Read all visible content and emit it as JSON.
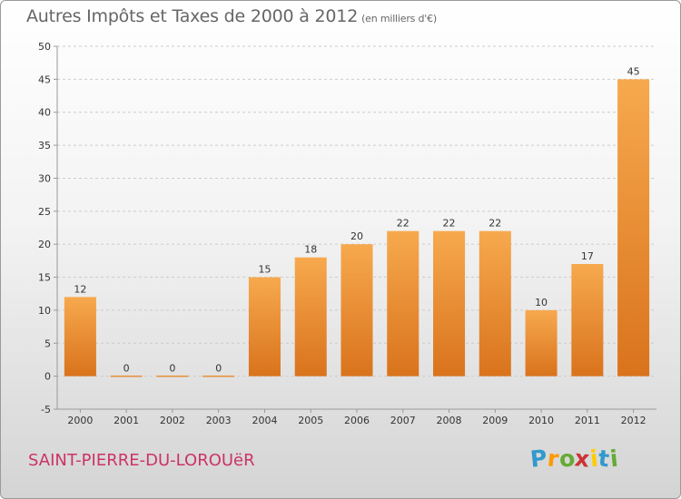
{
  "header": {
    "title": "Autres Impôts et Taxes de 2000 à 2012",
    "subtitle": "(en milliers d'€)"
  },
  "footer": {
    "commune": "SAINT-PIERRE-DU-LOROUëR",
    "logo_letters": [
      "P",
      "r",
      "o",
      "x",
      "i",
      "t",
      "i"
    ],
    "logo_colors": [
      "#3399cc",
      "#ff9900",
      "#66aa33",
      "#cc3333",
      "#ffcc00",
      "#3399cc",
      "#66aa33"
    ]
  },
  "chart_data": {
    "type": "bar",
    "title": "Autres Impôts et Taxes de 2000 à 2012",
    "subtitle": "(en milliers d'€)",
    "categories": [
      "2000",
      "2001",
      "2002",
      "2003",
      "2004",
      "2005",
      "2006",
      "2007",
      "2008",
      "2009",
      "2010",
      "2011",
      "2012"
    ],
    "values": [
      12,
      0,
      0,
      0,
      15,
      18,
      20,
      22,
      22,
      22,
      10,
      17,
      45
    ],
    "value_labels": [
      "12",
      "0",
      "0",
      "0",
      "15",
      "18",
      "20",
      "22",
      "22",
      "22",
      "10",
      "17",
      "45"
    ],
    "ylim": [
      -5,
      50
    ],
    "yticks": [
      -5,
      0,
      5,
      10,
      15,
      20,
      25,
      30,
      35,
      40,
      45,
      50
    ],
    "ytick_labels": [
      "-5",
      "0",
      "5",
      "10",
      "15",
      "20",
      "25",
      "30",
      "35",
      "40",
      "45",
      "50"
    ],
    "grid": "horizontal-dashed",
    "colors": {
      "bar_light": "#f7a94e",
      "bar_dark": "#d9731c",
      "axis": "#999999",
      "grid": "#cccccc"
    }
  }
}
